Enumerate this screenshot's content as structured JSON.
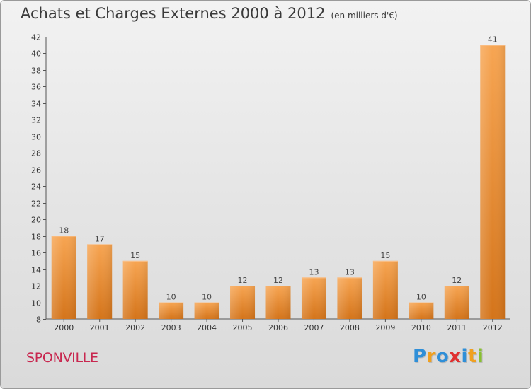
{
  "title": "Achats et Charges Externes 2000 à 2012",
  "subtitle": "(en milliers d'€)",
  "place_name": "SPONVILLE",
  "logo": {
    "text": "Proxiti",
    "colors": [
      "#2f8fd8",
      "#f0a020",
      "#2f8fd8",
      "#e03030",
      "#2f8fd8",
      "#f0a020",
      "#88c030"
    ]
  },
  "chart_data": {
    "type": "bar",
    "categories": [
      "2000",
      "2001",
      "2002",
      "2003",
      "2004",
      "2005",
      "2006",
      "2007",
      "2008",
      "2009",
      "2010",
      "2011",
      "2012"
    ],
    "values": [
      18,
      17,
      15,
      10,
      10,
      12,
      12,
      13,
      13,
      15,
      10,
      12,
      41
    ],
    "ylim": [
      8,
      42
    ],
    "yticks": [
      8,
      10,
      12,
      14,
      16,
      18,
      20,
      22,
      24,
      26,
      28,
      30,
      32,
      34,
      36,
      38,
      40,
      42
    ],
    "grid": false,
    "bar_color": "#f0902a"
  }
}
